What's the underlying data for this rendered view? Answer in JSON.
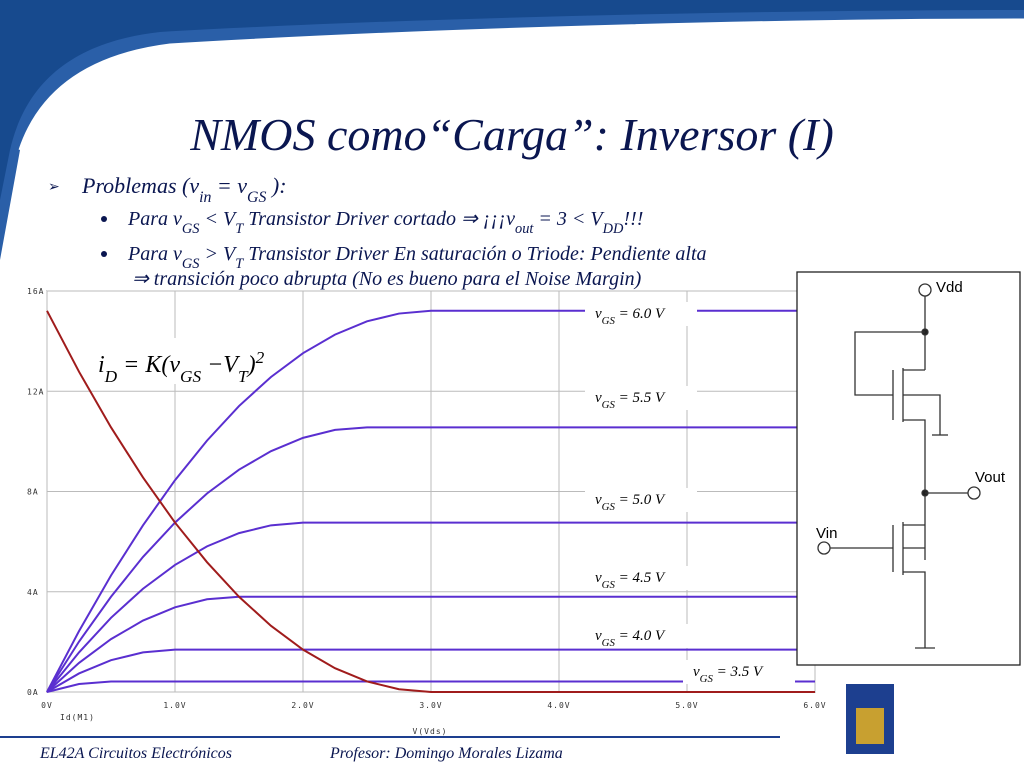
{
  "title": "NMOS como“Carga”: Inversor (I)",
  "bullets": [
    {
      "level": 1,
      "lines": [
        [
          "Problemas (v",
          {
            "sub": "in"
          },
          " = v",
          {
            "sub": "GS"
          },
          " ):"
        ]
      ]
    },
    {
      "level": 2,
      "lines": [
        [
          "Para v",
          {
            "sub": "GS"
          },
          " < V",
          {
            "sub": "T"
          },
          "  Transistor Driver cortado ⇒ ¡¡¡v",
          {
            "sub": "out"
          },
          " = 3 < V",
          {
            "sub": "DD"
          },
          "!!!"
        ]
      ]
    },
    {
      "level": 2,
      "lines": [
        [
          "Para v",
          {
            "sub": "GS"
          },
          " > V",
          {
            "sub": "T"
          },
          "  Transistor Driver En saturación o Triode: Pendiente alta"
        ],
        [
          "⇒ transición poco abrupta (No es bueno para el Noise Margin)"
        ]
      ]
    }
  ],
  "chart_data": {
    "type": "line",
    "formula": [
      "i",
      {
        "sub": "D"
      },
      " = K(v",
      {
        "sub": "GS"
      },
      " −V",
      {
        "sub": "T"
      },
      ")",
      {
        "sup": "2"
      }
    ],
    "y_label": "Id(M1)",
    "x_label": "V(Vds)",
    "x": [
      0,
      0.25,
      0.5,
      0.75,
      1,
      1.25,
      1.5,
      1.75,
      2,
      2.25,
      2.5,
      2.75,
      3,
      3.5,
      4,
      4.5,
      5,
      5.5,
      6
    ],
    "series": [
      {
        "label": [
          "v",
          {
            "sub": "GS"
          },
          " = 6.0 V"
        ],
        "color": "#5a2fd0",
        "values": [
          0,
          2.43,
          4.65,
          6.65,
          8.45,
          10.03,
          11.41,
          12.57,
          13.52,
          14.26,
          14.79,
          15.1,
          15.21,
          15.21,
          15.21,
          15.21,
          15.21,
          15.21,
          15.21
        ]
      },
      {
        "label": [
          "v",
          {
            "sub": "GS"
          },
          " = 5.5 V"
        ],
        "color": "#5a2fd0",
        "values": [
          0,
          2.01,
          3.8,
          5.39,
          6.76,
          7.92,
          8.87,
          9.61,
          10.14,
          10.46,
          10.56,
          10.56,
          10.56,
          10.56,
          10.56,
          10.56,
          10.56,
          10.56,
          10.56
        ]
      },
      {
        "label": [
          "v",
          {
            "sub": "GS"
          },
          " = 5.0 V"
        ],
        "color": "#5a2fd0",
        "values": [
          0,
          1.58,
          2.96,
          4.12,
          5.07,
          5.81,
          6.34,
          6.65,
          6.76,
          6.76,
          6.76,
          6.76,
          6.76,
          6.76,
          6.76,
          6.76,
          6.76,
          6.76,
          6.76
        ]
      },
      {
        "label": [
          "v",
          {
            "sub": "GS"
          },
          " = 4.5 V"
        ],
        "color": "#5a2fd0",
        "values": [
          0,
          1.16,
          2.11,
          2.85,
          3.38,
          3.7,
          3.8,
          3.8,
          3.8,
          3.8,
          3.8,
          3.8,
          3.8,
          3.8,
          3.8,
          3.8,
          3.8,
          3.8,
          3.8
        ]
      },
      {
        "label": [
          "v",
          {
            "sub": "GS"
          },
          " = 4.0 V"
        ],
        "color": "#5a2fd0",
        "values": [
          0,
          0.74,
          1.27,
          1.58,
          1.69,
          1.69,
          1.69,
          1.69,
          1.69,
          1.69,
          1.69,
          1.69,
          1.69,
          1.69,
          1.69,
          1.69,
          1.69,
          1.69,
          1.69
        ]
      },
      {
        "label": [
          "v",
          {
            "sub": "GS"
          },
          " = 3.5 V"
        ],
        "color": "#5a2fd0",
        "values": [
          0,
          0.32,
          0.42,
          0.42,
          0.42,
          0.42,
          0.42,
          0.42,
          0.42,
          0.42,
          0.42,
          0.42,
          0.42,
          0.42,
          0.42,
          0.42,
          0.42,
          0.42,
          0.42
        ]
      },
      {
        "color": "#a01c1c",
        "values": [
          15.21,
          12.78,
          10.56,
          8.56,
          6.76,
          5.18,
          3.8,
          2.64,
          1.69,
          0.95,
          0.42,
          0.11,
          0,
          0,
          0,
          0,
          0,
          0,
          0
        ]
      }
    ],
    "xlim": [
      0,
      6
    ],
    "ylim": [
      0,
      16
    ],
    "xticks": [
      {
        "value": 0,
        "label": "0V"
      },
      {
        "value": 1,
        "label": "1.0V"
      },
      {
        "value": 2,
        "label": "2.0V"
      },
      {
        "value": 3,
        "label": "3.0V"
      },
      {
        "value": 4,
        "label": "4.0V"
      },
      {
        "value": 5,
        "label": "5.0V"
      },
      {
        "value": 6,
        "label": "6.0V"
      }
    ],
    "yticks": [
      {
        "value": 0,
        "label": "0A"
      },
      {
        "value": 4,
        "label": "4A"
      },
      {
        "value": 8,
        "label": "8A"
      },
      {
        "value": 12,
        "label": "12A"
      },
      {
        "value": 16,
        "label": "16A"
      }
    ],
    "grid": true
  },
  "circuit": {
    "vdd": "Vdd",
    "vout": "Vout",
    "vin": "Vin"
  },
  "footer": {
    "course": "EL42A Circuitos Electrónicos",
    "professor": "Profesor: Domingo Morales Lizama"
  }
}
